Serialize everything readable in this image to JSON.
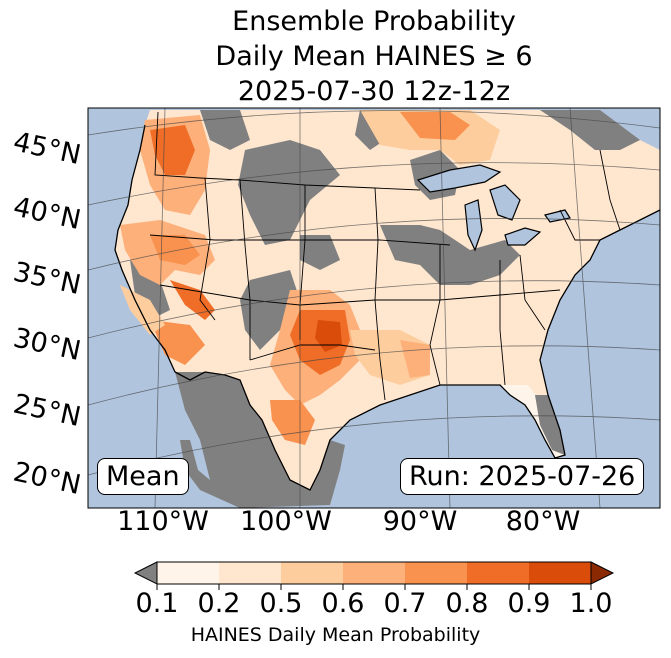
{
  "title": {
    "line1": "Ensemble Probability",
    "line2": "Daily Mean HAINES ≥ 6",
    "line3": "2025-07-30 12z-12z"
  },
  "map": {
    "projection": "lambert-conformal",
    "ocean_color": "#b0c4de",
    "missing_color": "#808080",
    "lat_labels": [
      "45°N",
      "40°N",
      "35°N",
      "30°N",
      "25°N",
      "20°N"
    ],
    "lon_labels": [
      "110°W",
      "100°W",
      "90°W",
      "80°W"
    ],
    "annotation_left": "Mean",
    "annotation_right": "Run: 2025-07-26"
  },
  "colorbar": {
    "title": "HAINES Daily Mean Probability",
    "ticks": [
      "0.1",
      "0.2",
      "0.5",
      "0.6",
      "0.7",
      "0.8",
      "0.9",
      "1.0"
    ],
    "colors": [
      "#fff4ea",
      "#fee6cf",
      "#fdcd9d",
      "#fdb07a",
      "#f9914f",
      "#ef6d27",
      "#d94c0a",
      "#bb3d02"
    ],
    "under_color": "#808080",
    "over_color": "#8b2a02"
  }
}
